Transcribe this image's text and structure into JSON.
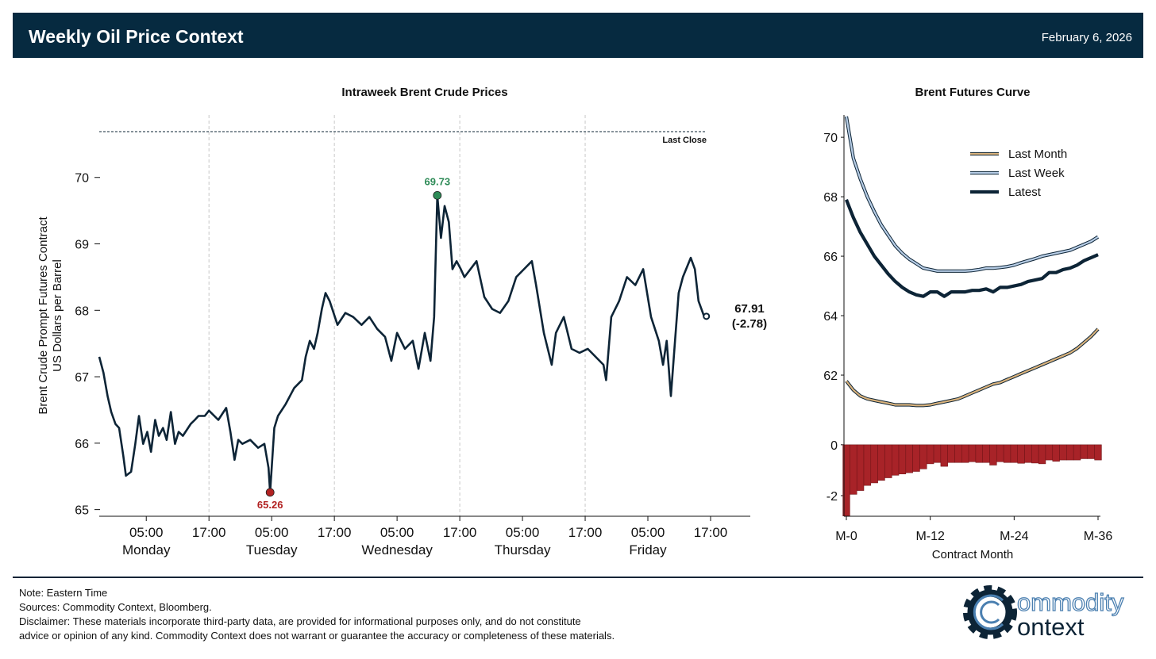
{
  "header": {
    "title": "Weekly Oil Price Context",
    "date": "February 6, 2026"
  },
  "chart_data": [
    {
      "type": "line",
      "title": "Intraweek Brent Crude Prices",
      "y_label": [
        "Brent Crude Prompt Futures Contract",
        "US Dollars per Barrel"
      ],
      "color": "#0d2436",
      "x": [
        -4.0,
        -3.2,
        -2.4,
        -1.7,
        -0.9,
        -0.2,
        0.6,
        1.1,
        2.1,
        2.9,
        3.6,
        4.4,
        5.2,
        5.9,
        6.7,
        7.4,
        8.2,
        8.9,
        9.7,
        10.5,
        11.2,
        12.0,
        13.5,
        14.3,
        15.0,
        16.2,
        17.0,
        18.8,
        20.3,
        21.1,
        21.9,
        22.6,
        23.4,
        24.9,
        26.4,
        27.6,
        28.4,
        28.7,
        29.5,
        30.2,
        31.7,
        33.3,
        34.8,
        35.5,
        36.3,
        37.1,
        37.8,
        38.6,
        39.3,
        40.1,
        41.6,
        43.1,
        44.6,
        46.2,
        47.7,
        49.2,
        50.7,
        51.9,
        53.0,
        54.5,
        56.0,
        57.1,
        58.3,
        59.4,
        60.1,
        60.7,
        61.4,
        62.1,
        62.9,
        63.6,
        64.4,
        65.2,
        65.9,
        68.2,
        69.7,
        71.2,
        72.7,
        74.3,
        75.8,
        77.3,
        78.8,
        79.6,
        81.1,
        82.6,
        83.4,
        84.9,
        86.4,
        87.9,
        89.5,
        92.5,
        93.0,
        94.0,
        95.5,
        97.0,
        98.6,
        100.1,
        101.6,
        103.1,
        103.9,
        104.6,
        105.4,
        106.2,
        106.9,
        107.7,
        109.2,
        110.0,
        110.7,
        111.8,
        112.2
      ],
      "values": [
        67.3,
        67.06,
        66.71,
        66.47,
        66.29,
        66.23,
        65.81,
        65.51,
        65.57,
        65.99,
        66.41,
        65.99,
        66.17,
        65.87,
        66.35,
        66.11,
        66.23,
        66.05,
        66.47,
        65.99,
        66.17,
        66.11,
        66.29,
        66.35,
        66.41,
        66.41,
        66.49,
        66.35,
        66.53,
        66.17,
        65.75,
        66.05,
        65.99,
        66.05,
        65.93,
        65.99,
        65.63,
        65.26,
        66.23,
        66.41,
        66.59,
        66.83,
        66.95,
        67.3,
        67.54,
        67.42,
        67.66,
        68.02,
        68.26,
        68.14,
        67.78,
        67.96,
        67.9,
        67.78,
        67.9,
        67.72,
        67.6,
        67.24,
        67.66,
        67.42,
        67.54,
        67.12,
        67.66,
        67.24,
        67.9,
        69.73,
        69.09,
        69.57,
        69.33,
        68.62,
        68.74,
        68.62,
        68.5,
        68.74,
        68.2,
        68.02,
        67.96,
        68.14,
        68.5,
        68.62,
        68.74,
        68.38,
        67.66,
        67.18,
        67.66,
        67.9,
        67.42,
        67.36,
        67.42,
        67.18,
        66.95,
        67.9,
        68.14,
        68.5,
        68.38,
        68.62,
        67.9,
        67.54,
        67.18,
        67.54,
        66.71,
        67.54,
        68.26,
        68.5,
        68.79,
        68.62,
        68.14,
        67.9,
        67.91
      ],
      "xlim": [
        -4,
        120.6
      ],
      "ylim": [
        64.9,
        70.94
      ],
      "yticks": [
        65,
        66,
        67,
        68,
        69,
        70
      ],
      "xticks": [
        {
          "value": 5,
          "label": "05:00"
        },
        {
          "value": 17,
          "label": "17:00"
        },
        {
          "value": 29,
          "label": "05:00"
        },
        {
          "value": 41,
          "label": "17:00"
        },
        {
          "value": 53,
          "label": "05:00"
        },
        {
          "value": 65,
          "label": "17:00"
        },
        {
          "value": 77,
          "label": "05:00"
        },
        {
          "value": 89,
          "label": "17:00"
        },
        {
          "value": 101,
          "label": "05:00"
        },
        {
          "value": 113,
          "label": "17:00"
        }
      ],
      "day_labels": [
        {
          "value": 5,
          "label": "Monday"
        },
        {
          "value": 29,
          "label": "Tuesday"
        },
        {
          "value": 53,
          "label": "Wednesday"
        },
        {
          "value": 77,
          "label": "Thursday"
        },
        {
          "value": 101,
          "label": "Friday"
        }
      ],
      "vgrid": [
        17,
        41,
        65,
        89
      ],
      "last_close": {
        "value": 70.69,
        "label": "Last Close"
      },
      "high": {
        "x": 60.7,
        "value": 69.73,
        "label": "69.73",
        "color": "#2e8b57"
      },
      "low": {
        "x": 28.7,
        "value": 65.26,
        "label": "65.26",
        "color": "#b22222"
      },
      "last": {
        "x": 112.2,
        "value": 67.91,
        "label": "67.91",
        "change_label": "(-2.78)"
      }
    },
    {
      "type": "multiline",
      "title": "Brent Futures Curve",
      "categories": [
        "M-0",
        null,
        null,
        null,
        null,
        null,
        null,
        null,
        null,
        null,
        null,
        null,
        "M-12",
        null,
        null,
        null,
        null,
        null,
        null,
        null,
        null,
        null,
        null,
        null,
        "M-24",
        null,
        null,
        null,
        null,
        null,
        null,
        null,
        null,
        null,
        null,
        null,
        "M-36"
      ],
      "series": [
        {
          "name": "Last Month",
          "color": "#d9b27c",
          "values": [
            61.8,
            61.5,
            61.3,
            61.2,
            61.15,
            61.1,
            61.05,
            61.0,
            61.0,
            61.0,
            60.98,
            60.98,
            61.0,
            61.05,
            61.1,
            61.15,
            61.2,
            61.3,
            61.4,
            61.5,
            61.6,
            61.7,
            61.75,
            61.85,
            61.95,
            62.05,
            62.15,
            62.25,
            62.35,
            62.45,
            62.55,
            62.65,
            62.75,
            62.9,
            63.1,
            63.3,
            63.55
          ]
        },
        {
          "name": "Last Week",
          "color": "#b7cde6",
          "values": [
            70.7,
            69.3,
            68.6,
            68.0,
            67.5,
            67.05,
            66.7,
            66.35,
            66.1,
            65.9,
            65.75,
            65.6,
            65.55,
            65.5,
            65.5,
            65.5,
            65.5,
            65.5,
            65.52,
            65.55,
            65.6,
            65.6,
            65.62,
            65.65,
            65.7,
            65.78,
            65.85,
            65.92,
            66.0,
            66.05,
            66.1,
            66.15,
            66.2,
            66.3,
            66.4,
            66.5,
            66.65
          ]
        },
        {
          "name": "Latest",
          "color": "#0d2436",
          "values": [
            67.9,
            67.3,
            66.8,
            66.4,
            66.0,
            65.7,
            65.4,
            65.15,
            64.95,
            64.8,
            64.7,
            64.65,
            64.8,
            64.8,
            64.65,
            64.8,
            64.8,
            64.8,
            64.85,
            64.85,
            64.9,
            64.8,
            64.95,
            64.95,
            65.0,
            65.05,
            65.15,
            65.2,
            65.25,
            65.45,
            65.45,
            65.55,
            65.6,
            65.7,
            65.85,
            65.95,
            66.05
          ]
        }
      ],
      "ylim": [
        60.0,
        70.75
      ],
      "yticks": [
        62,
        64,
        66,
        68,
        70
      ],
      "legend": "upper right"
    },
    {
      "type": "bar",
      "x_label": "Contract Month",
      "color": "#a82328",
      "values": [
        -2.8,
        -1.95,
        -1.8,
        -1.6,
        -1.5,
        -1.4,
        -1.3,
        -1.2,
        -1.15,
        -1.1,
        -1.05,
        -0.95,
        -0.75,
        -0.7,
        -0.85,
        -0.7,
        -0.7,
        -0.7,
        -0.67,
        -0.7,
        -0.7,
        -0.8,
        -0.67,
        -0.7,
        -0.7,
        -0.73,
        -0.7,
        -0.72,
        -0.75,
        -0.6,
        -0.65,
        -0.6,
        -0.6,
        -0.6,
        -0.55,
        -0.55,
        -0.6
      ],
      "ylim": [
        -2.81,
        0.4
      ],
      "yticks": [
        0,
        -2
      ]
    }
  ],
  "footer": {
    "lines": [
      "Note: Eastern Time",
      "Sources: Commodity Context, Bloomberg.",
      "Disclaimer: These materials incorporate third-party data, are provided for informational purposes only, and do not constitute",
      "advice or opinion of any kind. Commodity Context does not warrant or guarantee the accuracy or completeness of these materials."
    ],
    "logo": [
      "ommodity",
      "ontext"
    ]
  }
}
